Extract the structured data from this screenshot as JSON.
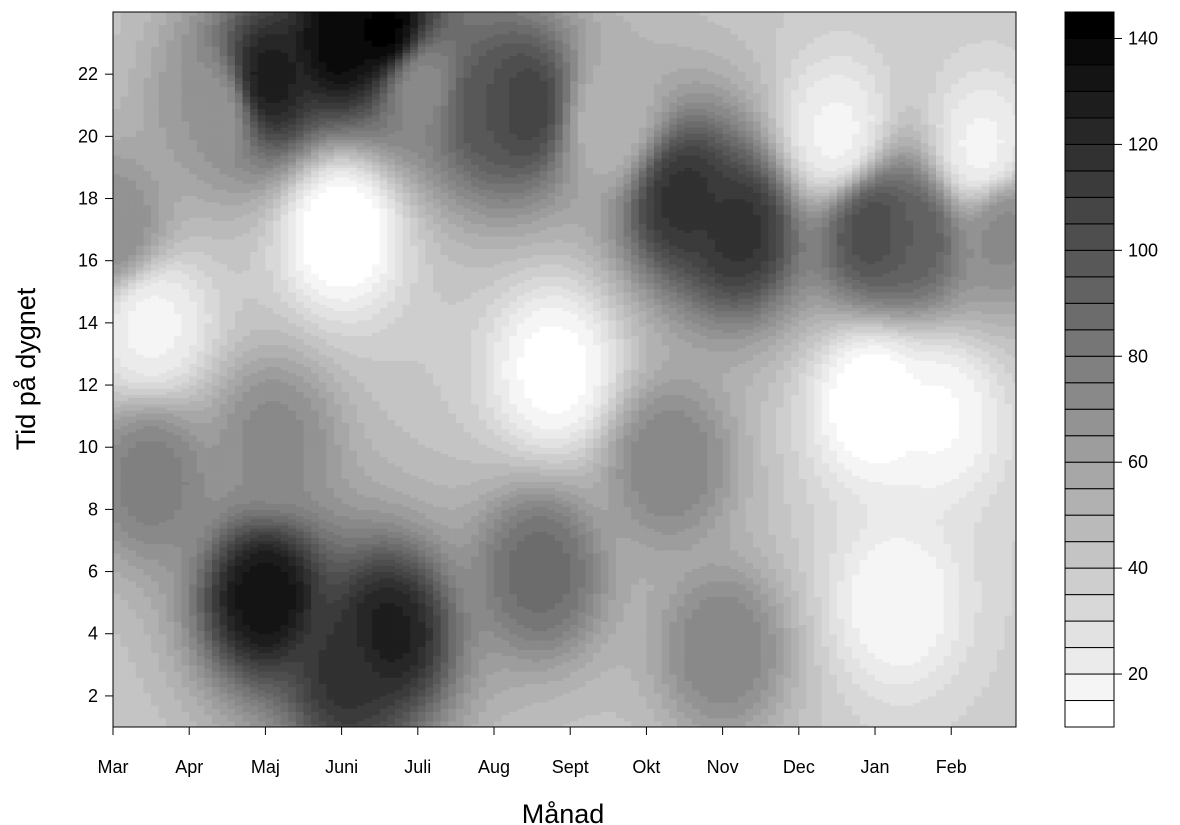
{
  "chart_data": {
    "type": "heatmap",
    "subtype": "filled-contour",
    "title": "",
    "xlabel": "Månad",
    "ylabel": "Tid på dygnet",
    "x_categories": [
      "Mar",
      "Apr",
      "Maj",
      "Juni",
      "Juli",
      "Aug",
      "Sept",
      "Okt",
      "Nov",
      "Dec",
      "Jan",
      "Feb"
    ],
    "xlim": [
      0,
      11.85
    ],
    "ylim": [
      1,
      24
    ],
    "y_ticks": [
      2,
      4,
      6,
      8,
      10,
      12,
      14,
      16,
      18,
      20,
      22
    ],
    "color_scale": {
      "min": 10,
      "max": 145,
      "step": 5,
      "ticks": [
        20,
        40,
        60,
        80,
        100,
        120,
        140
      ],
      "low_color": "#ffffff",
      "high_color": "#000000"
    },
    "hotspots": [
      {
        "x": 2.0,
        "y": 21.8,
        "value": 130
      },
      {
        "x": 3.0,
        "y": 23.1,
        "value": 140
      },
      {
        "x": 3.6,
        "y": 23.3,
        "value": 145
      },
      {
        "x": 4.9,
        "y": 21.0,
        "value": 100
      },
      {
        "x": 5.4,
        "y": 21.0,
        "value": 110
      },
      {
        "x": 7.5,
        "y": 18.0,
        "value": 118
      },
      {
        "x": 8.2,
        "y": 17.0,
        "value": 118
      },
      {
        "x": 10.0,
        "y": 17.0,
        "value": 105
      },
      {
        "x": 10.5,
        "y": 16.8,
        "value": 95
      },
      {
        "x": 2.0,
        "y": 5.2,
        "value": 135
      },
      {
        "x": 3.6,
        "y": 4.0,
        "value": 128
      },
      {
        "x": 3.1,
        "y": 2.8,
        "value": 118
      },
      {
        "x": 5.6,
        "y": 6.0,
        "value": 88
      },
      {
        "x": 0.5,
        "y": 9.0,
        "value": 78
      },
      {
        "x": 7.3,
        "y": 9.5,
        "value": 75
      },
      {
        "x": 8.0,
        "y": 3.5,
        "value": 75
      },
      {
        "x": 2.1,
        "y": 10.2,
        "value": 72
      },
      {
        "x": 0.0,
        "y": 17.0,
        "value": 70
      },
      {
        "x": 11.7,
        "y": 17.0,
        "value": 72
      },
      {
        "x": 1.4,
        "y": 21.0,
        "value": 65
      },
      {
        "x": 4.0,
        "y": 21.8,
        "value": 70
      },
      {
        "x": 6.5,
        "y": 20.5,
        "value": 50
      },
      {
        "x": 3.0,
        "y": 17.0,
        "value": 8
      },
      {
        "x": 5.8,
        "y": 12.5,
        "value": 12
      },
      {
        "x": 10.0,
        "y": 11.5,
        "value": 8
      },
      {
        "x": 10.8,
        "y": 11.0,
        "value": 14
      },
      {
        "x": 0.5,
        "y": 14.0,
        "value": 18
      },
      {
        "x": 10.3,
        "y": 5.0,
        "value": 15
      },
      {
        "x": 9.5,
        "y": 20.0,
        "value": 18
      },
      {
        "x": 11.4,
        "y": 19.5,
        "value": 18
      }
    ]
  }
}
